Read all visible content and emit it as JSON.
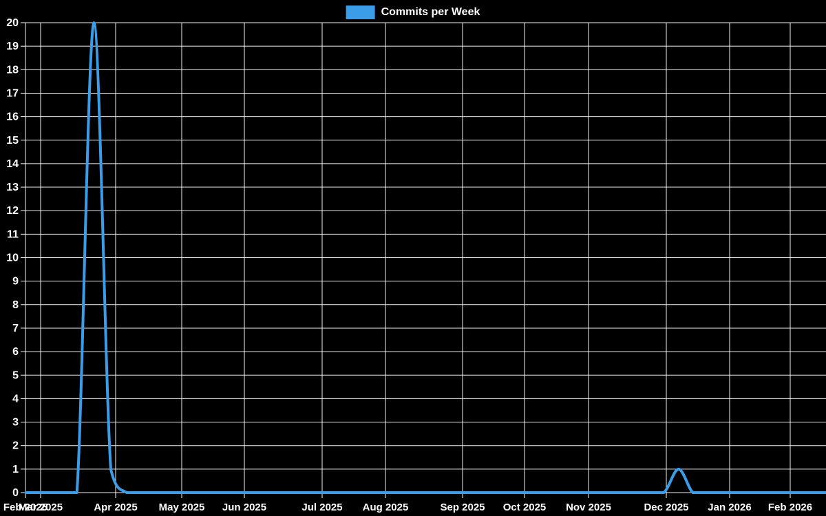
{
  "legend": {
    "label": "Commits per Week"
  },
  "chart_data": {
    "type": "line",
    "title": "",
    "series_name": "Commits per Week",
    "line_color": "#3b9de8",
    "background_color": "#000000",
    "grid_color": "#ffffff",
    "text_color": "#ffffff",
    "grid": true,
    "legend_position": "top-center",
    "ylim": [
      0,
      20
    ],
    "y_tick_labels": [
      "0",
      "1",
      "2",
      "3",
      "4",
      "5",
      "6",
      "7",
      "8",
      "9",
      "10",
      "11",
      "12",
      "13",
      "14",
      "15",
      "16",
      "17",
      "18",
      "19",
      "20"
    ],
    "x_tick_labels": [
      "Feb 2025",
      "Mar 2025",
      "Apr 2025",
      "May 2025",
      "Jun 2025",
      "Jul 2025",
      "Aug 2025",
      "Sep 2025",
      "Oct 2025",
      "Nov 2025",
      "Dec 2025",
      "Jan 2026",
      "Feb 2026"
    ],
    "weekly_points": {
      "start": "2025-02-23",
      "interval_days": 7,
      "count": 53,
      "baseline": 0,
      "nonzero": [
        {
          "date": "2025-03-23",
          "value": 20
        },
        {
          "date": "2025-03-30",
          "value": 1
        },
        {
          "date": "2025-12-07",
          "value": 1
        }
      ]
    }
  }
}
